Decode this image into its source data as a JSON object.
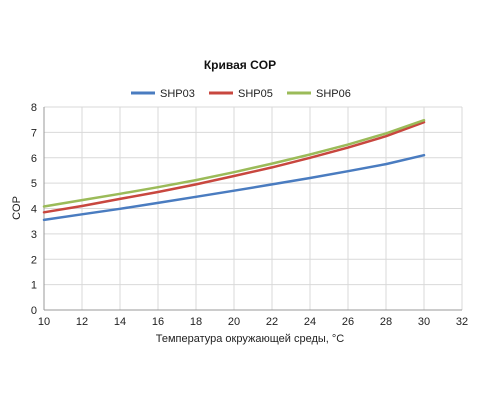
{
  "chart_data": {
    "type": "line",
    "title": "Кривая COP",
    "xlabel": "Температура окружающей среды, °C",
    "ylabel": "COP",
    "xlim": [
      10,
      32
    ],
    "ylim": [
      0,
      8
    ],
    "x_ticks": [
      "10",
      "12",
      "14",
      "16",
      "18",
      "20",
      "22",
      "24",
      "26",
      "28",
      "30",
      "32"
    ],
    "y_ticks": [
      "0",
      "1",
      "2",
      "3",
      "4",
      "5",
      "6",
      "7",
      "8"
    ],
    "grid": true,
    "legend_position": "top",
    "series": [
      {
        "name": "SHP03",
        "color": "#4a7cc0",
        "x": [
          10,
          12,
          14,
          16,
          18,
          20,
          22,
          24,
          26,
          28,
          30
        ],
        "values": [
          3.55,
          3.77,
          3.99,
          4.22,
          4.46,
          4.7,
          4.95,
          5.2,
          5.47,
          5.75,
          6.1
        ]
      },
      {
        "name": "SHP05",
        "color": "#c8473f",
        "x": [
          10,
          12,
          14,
          16,
          18,
          20,
          22,
          24,
          26,
          28,
          30
        ],
        "values": [
          3.85,
          4.1,
          4.38,
          4.65,
          4.95,
          5.28,
          5.62,
          6.0,
          6.4,
          6.85,
          7.4
        ]
      },
      {
        "name": "SHP06",
        "color": "#9bbb59",
        "x": [
          10,
          12,
          14,
          16,
          18,
          20,
          22,
          24,
          26,
          28,
          30
        ],
        "values": [
          4.08,
          4.33,
          4.58,
          4.84,
          5.12,
          5.43,
          5.77,
          6.13,
          6.52,
          6.96,
          7.48
        ]
      }
    ]
  }
}
